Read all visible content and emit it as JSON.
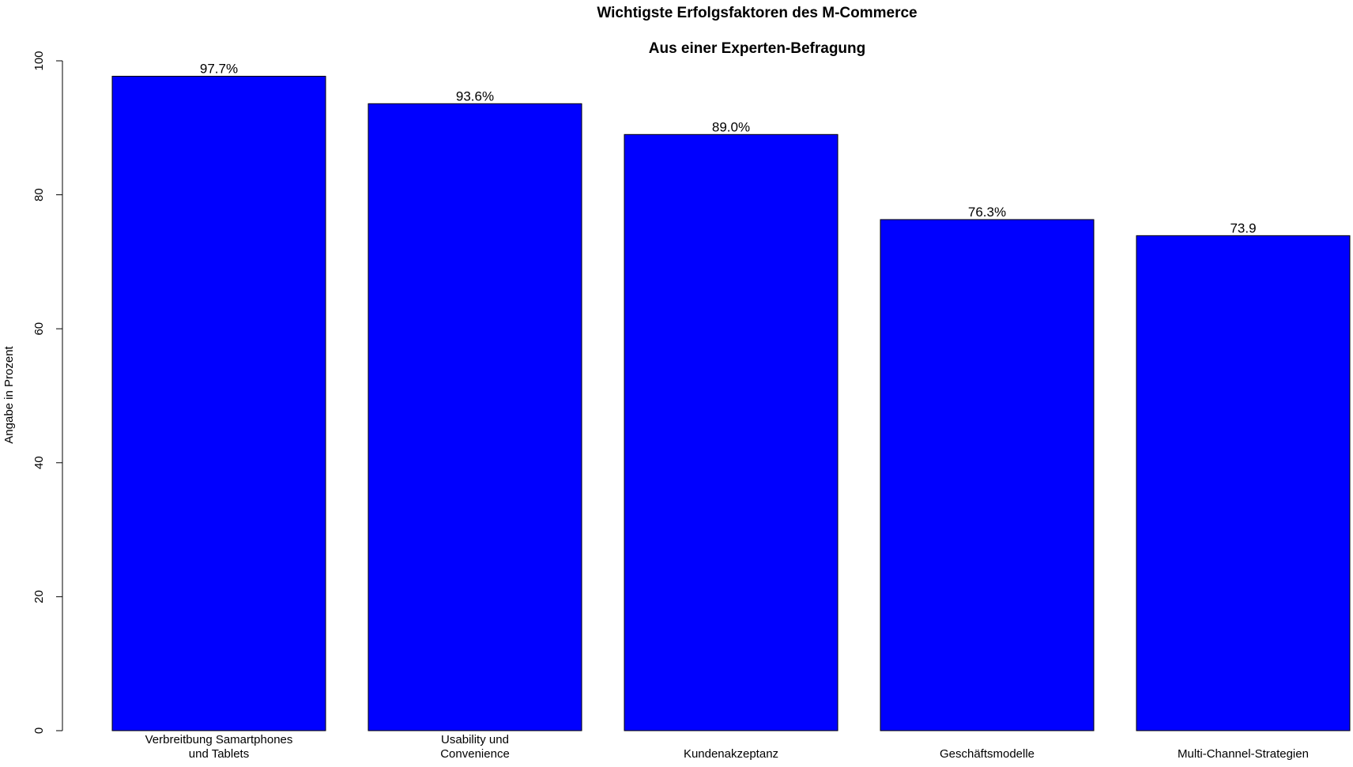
{
  "chart_data": {
    "type": "bar",
    "title": "Wichtigste Erfolgsfaktoren des M-Commerce",
    "subtitle": "Aus einer Experten-Befragung",
    "xlabel": "",
    "ylabel": "Angabe in Prozent",
    "ylim": [
      0,
      100
    ],
    "yticks": [
      0,
      20,
      40,
      60,
      80,
      100
    ],
    "grid": false,
    "legend": "none",
    "bar_color": "#0000ff",
    "categories": [
      [
        "Verbreitbung Samartphones",
        "und Tablets"
      ],
      [
        "Usability und",
        "Convenience"
      ],
      [
        "Kundenakzeptanz"
      ],
      [
        "Geschäftsmodelle"
      ],
      [
        "Multi-Channel-Strategien"
      ]
    ],
    "values": [
      97.7,
      93.6,
      89.0,
      76.3,
      73.9
    ],
    "data_labels": [
      "97.7%",
      "93.6%",
      "89.0%",
      "76.3%",
      "73.9"
    ]
  }
}
